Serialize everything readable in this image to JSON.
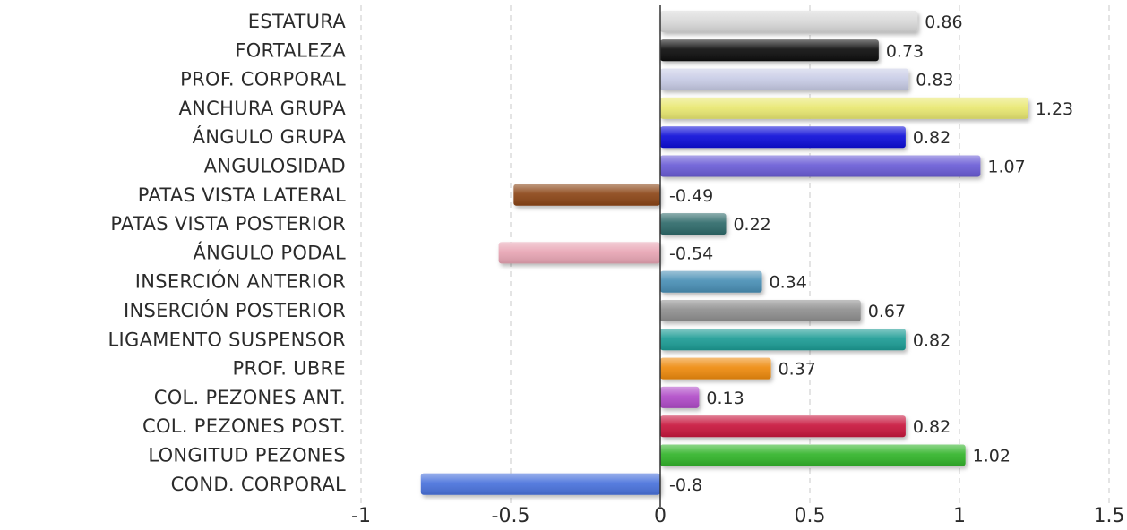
{
  "chart_data": {
    "type": "bar",
    "orientation": "horizontal",
    "categories": [
      "ESTATURA",
      "FORTALEZA",
      "PROF. CORPORAL",
      "ANCHURA GRUPA",
      "ÁNGULO GRUPA",
      "ANGULOSIDAD",
      "PATAS VISTA LATERAL",
      "PATAS VISTA POSTERIOR",
      "ÁNGULO PODAL",
      "INSERCIÓN ANTERIOR",
      "INSERCIÓN POSTERIOR",
      "LIGAMENTO SUSPENSOR",
      "PROF. UBRE",
      "COL. PEZONES ANT.",
      "COL. PEZONES POST.",
      "LONGITUD PEZONES",
      "COND. CORPORAL"
    ],
    "values": [
      0.86,
      0.73,
      0.83,
      1.23,
      0.82,
      1.07,
      -0.49,
      0.22,
      -0.54,
      0.34,
      0.67,
      0.82,
      0.37,
      0.13,
      0.82,
      1.02,
      -0.8
    ],
    "value_labels": [
      "0.86",
      "0.73",
      "0.83",
      "1.23",
      "0.82",
      "1.07",
      "-0.49",
      "0.22",
      "-0.54",
      "0.34",
      "0.67",
      "0.82",
      "0.37",
      "0.13",
      "0.82",
      "1.02",
      "-0.8"
    ],
    "colors": [
      "#d9d9d9",
      "#0a0a0a",
      "#c8cce6",
      "#e9e871",
      "#1010d8",
      "#6a5bd6",
      "#8b4513",
      "#2f6b6b",
      "#e8a5b4",
      "#4a8fb5",
      "#8f8f8f",
      "#1a9c95",
      "#ee8a10",
      "#b04cc8",
      "#c8143c",
      "#32b42a",
      "#4a72dc"
    ],
    "xlim": [
      -1,
      1.5
    ],
    "xticks": [
      -1,
      -0.5,
      0,
      0.5,
      1,
      1.5
    ],
    "xtick_labels": [
      "-1",
      "-0.5",
      "0",
      "0.5",
      "1",
      "1.5"
    ],
    "grid": "vertical-dashed",
    "title": "",
    "xlabel": "",
    "ylabel": ""
  }
}
